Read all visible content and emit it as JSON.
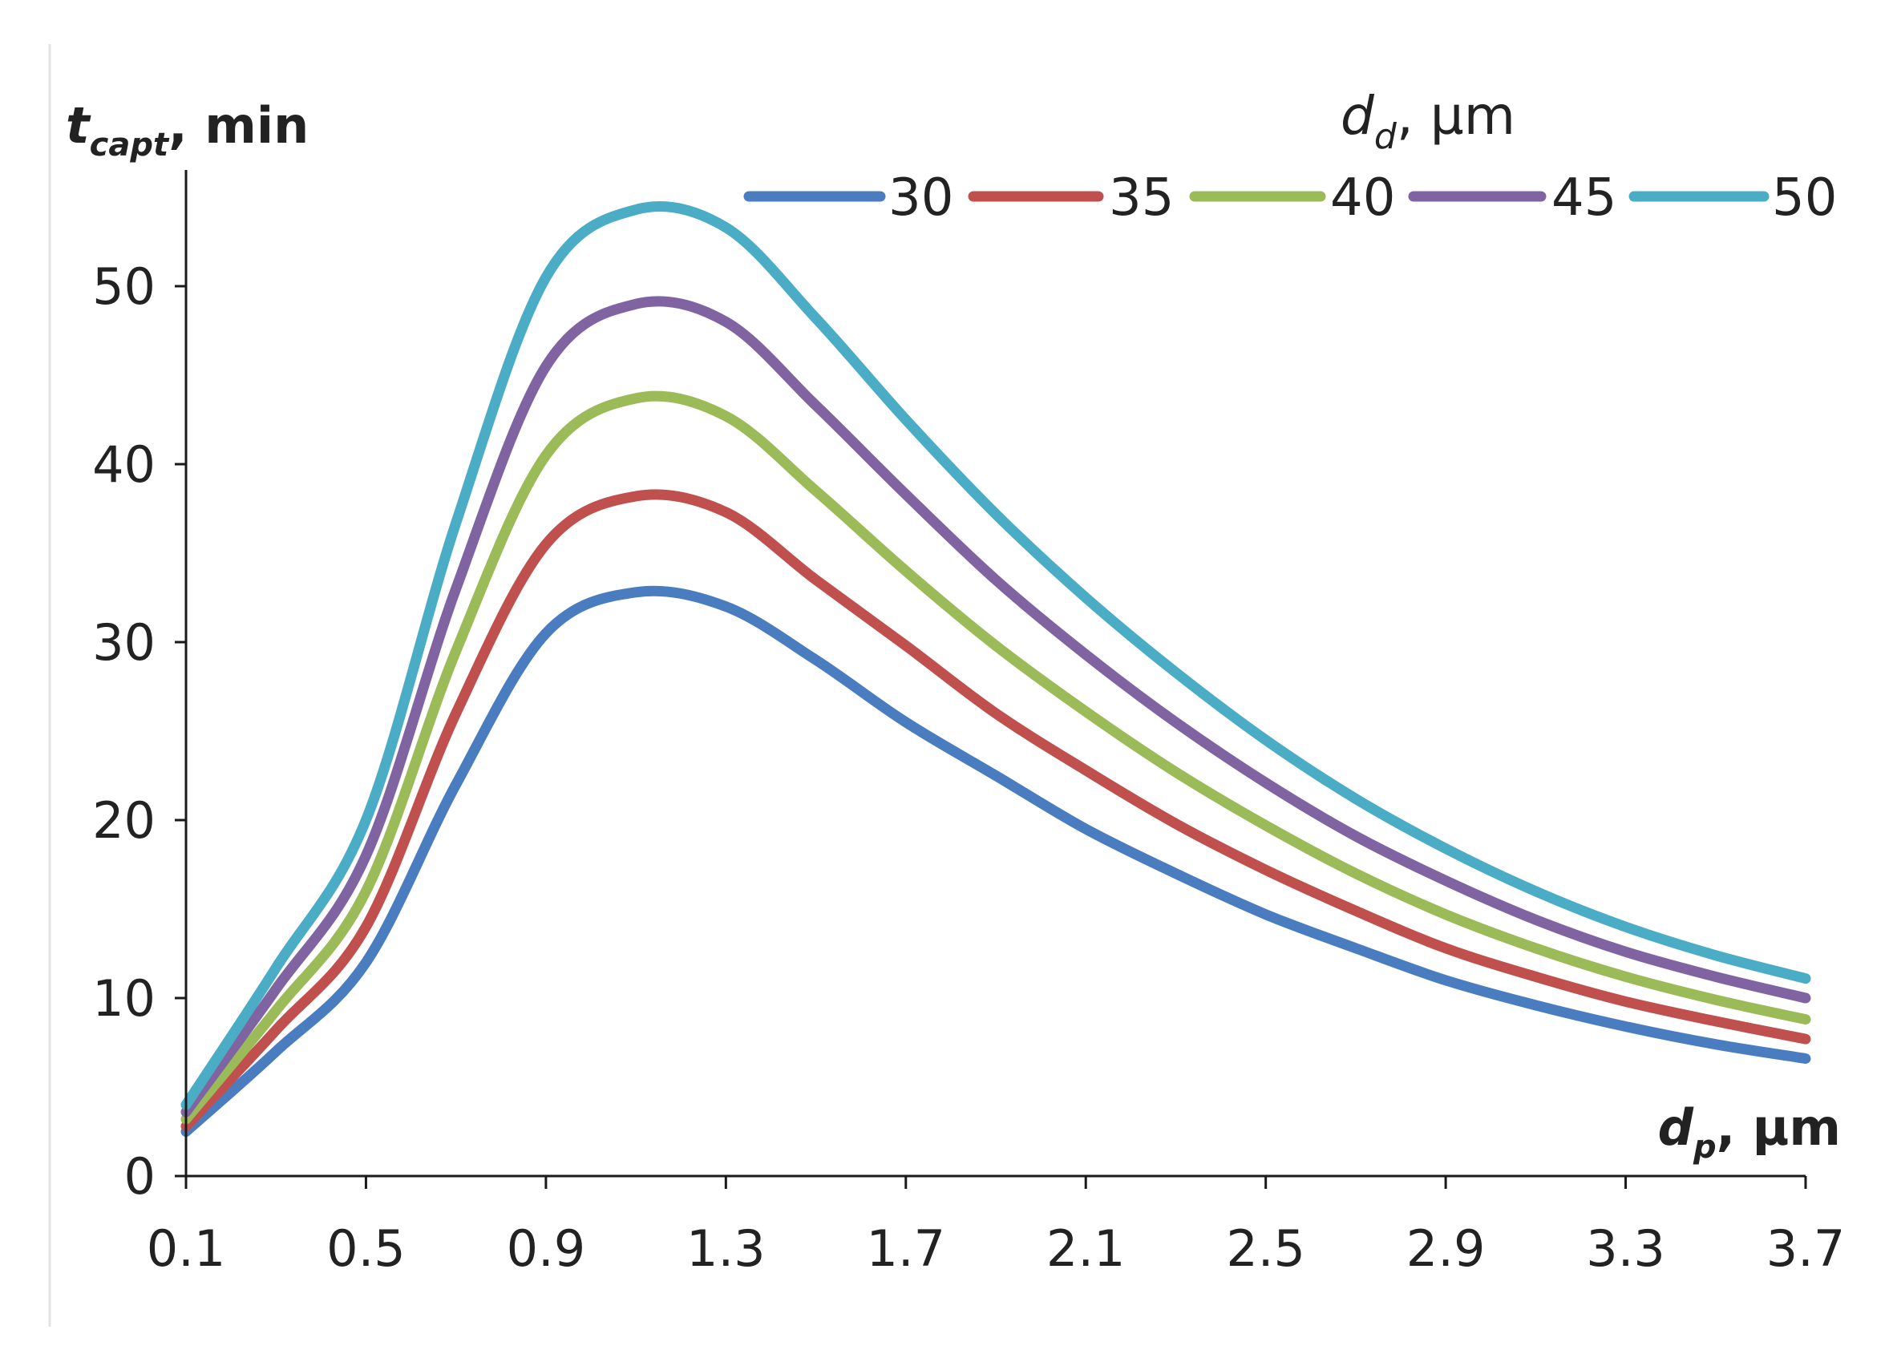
{
  "chart_data": {
    "type": "line",
    "title": "",
    "legend_title": {
      "main": "d",
      "sub": "d",
      "unit": ", µm"
    },
    "ylabel": {
      "main": "t",
      "sub": "capt",
      "unit": ", min"
    },
    "xlabel": {
      "main": "d",
      "sub": "p",
      "unit": ", µm"
    },
    "xlim": [
      0.1,
      3.7
    ],
    "ylim": [
      0,
      55
    ],
    "x_ticks": [
      "0.1",
      "0.5",
      "0.9",
      "1.3",
      "1.7",
      "2.1",
      "2.5",
      "2.9",
      "3.3",
      "3.7"
    ],
    "y_ticks": [
      "0",
      "10",
      "20",
      "30",
      "40",
      "50"
    ],
    "x": [
      0.1,
      0.3,
      0.5,
      0.7,
      0.9,
      1.1,
      1.3,
      1.5,
      1.7,
      1.9,
      2.1,
      2.3,
      2.5,
      2.7,
      2.9,
      3.1,
      3.3,
      3.5,
      3.7
    ],
    "series": [
      {
        "name": "30",
        "color": "#4A7DC0",
        "values": [
          2.5,
          7.0,
          12.0,
          22.0,
          30.5,
          32.8,
          32.0,
          29.0,
          25.5,
          22.5,
          19.5,
          17.0,
          14.7,
          12.8,
          11.0,
          9.6,
          8.4,
          7.4,
          6.6
        ]
      },
      {
        "name": "35",
        "color": "#C0504D",
        "values": [
          2.8,
          8.2,
          14.0,
          26.0,
          35.5,
          38.2,
          37.3,
          33.5,
          29.8,
          26.0,
          22.8,
          19.8,
          17.2,
          14.9,
          12.8,
          11.2,
          9.8,
          8.7,
          7.7
        ]
      },
      {
        "name": "40",
        "color": "#9BBB59",
        "values": [
          3.2,
          9.3,
          16.0,
          29.5,
          40.5,
          43.7,
          42.7,
          38.5,
          34.0,
          29.8,
          26.1,
          22.7,
          19.7,
          17.0,
          14.7,
          12.8,
          11.2,
          9.9,
          8.8
        ]
      },
      {
        "name": "45",
        "color": "#8064A2",
        "values": [
          3.6,
          10.5,
          18.0,
          33.0,
          45.5,
          49.0,
          48.0,
          43.3,
          38.3,
          33.5,
          29.3,
          25.5,
          22.1,
          19.1,
          16.6,
          14.4,
          12.6,
          11.2,
          10.0
        ]
      },
      {
        "name": "50",
        "color": "#4BACC6",
        "values": [
          4.0,
          11.7,
          20.0,
          36.7,
          50.5,
          54.3,
          53.3,
          48.2,
          42.5,
          37.2,
          32.5,
          28.3,
          24.5,
          21.2,
          18.4,
          16.0,
          14.0,
          12.4,
          11.1
        ]
      }
    ]
  }
}
